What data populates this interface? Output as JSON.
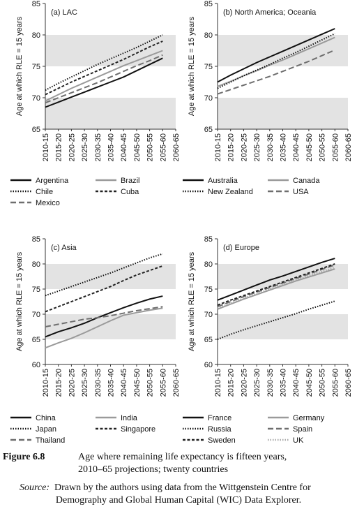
{
  "chart_data": [
    {
      "type": "line",
      "title": "(a) LAC",
      "ylabel": "Age at which RLE = 15 years",
      "categories": [
        "2010-15",
        "2015-20",
        "2020-25",
        "2025-30",
        "2030-35",
        "2035-40",
        "2040-45",
        "2045-50",
        "2050-55",
        "2055-60",
        "2060-65"
      ],
      "ylim": [
        65,
        85
      ],
      "yticks": [
        65,
        70,
        75,
        80,
        85
      ],
      "shaded_bands": [
        [
          65,
          70
        ],
        [
          75,
          80
        ]
      ],
      "series": [
        {
          "name": "Argentina",
          "color": "#111111",
          "dash": "solid",
          "values": [
            68.5,
            69.3,
            70.1,
            70.9,
            71.7,
            72.5,
            73.3,
            74.3,
            75.3,
            76.3,
            null
          ]
        },
        {
          "name": "Brazil",
          "color": "#9a9a9a",
          "dash": "solid",
          "values": [
            69.5,
            70.5,
            71.5,
            72.4,
            73.3,
            74.2,
            75.1,
            75.9,
            76.7,
            77.5,
            null
          ]
        },
        {
          "name": "Chile",
          "color": "#111111",
          "dash": "dotted",
          "values": [
            71.2,
            72.3,
            73.3,
            74.3,
            75.3,
            76.2,
            77.1,
            78.0,
            79.0,
            80.0,
            null
          ]
        },
        {
          "name": "Cuba",
          "color": "#222222",
          "dash": "dashed",
          "values": [
            70.5,
            71.5,
            72.5,
            73.4,
            74.3,
            75.2,
            76.1,
            77.1,
            78.1,
            79.0,
            null
          ]
        },
        {
          "name": "Mexico",
          "color": "#6e6e6e",
          "dash": "longdash",
          "values": [
            69.2,
            70.0,
            70.8,
            71.6,
            72.4,
            73.3,
            74.2,
            75.1,
            75.9,
            76.8,
            null
          ]
        }
      ]
    },
    {
      "type": "line",
      "title": "(b) North America; Oceania",
      "ylabel": "Age at which RLE = 15 years",
      "categories": [
        "2010-15",
        "2015-20",
        "2020-25",
        "2025-30",
        "2030-35",
        "2035-40",
        "2040-45",
        "2045-50",
        "2050-55",
        "2055-60",
        "2060-65"
      ],
      "ylim": [
        65,
        85
      ],
      "yticks": [
        65,
        70,
        75,
        80,
        85
      ],
      "shaded_bands": [
        [
          65,
          70
        ],
        [
          75,
          80
        ]
      ],
      "series": [
        {
          "name": "Australia",
          "color": "#111111",
          "dash": "solid",
          "values": [
            72.5,
            73.6,
            74.6,
            75.6,
            76.5,
            77.4,
            78.3,
            79.2,
            80.1,
            81.0,
            null
          ]
        },
        {
          "name": "Canada",
          "color": "#9a9a9a",
          "dash": "solid",
          "values": [
            71.8,
            72.6,
            73.5,
            74.3,
            75.2,
            76.0,
            76.9,
            77.8,
            78.7,
            79.6,
            null
          ]
        },
        {
          "name": "New Zealand",
          "color": "#111111",
          "dash": "dotted",
          "values": [
            71.5,
            72.5,
            73.5,
            74.4,
            75.3,
            76.3,
            77.2,
            78.2,
            79.2,
            80.2,
            null
          ]
        },
        {
          "name": "USA",
          "color": "#6e6e6e",
          "dash": "longdash",
          "values": [
            70.6,
            71.3,
            72.0,
            72.7,
            73.4,
            74.2,
            75.0,
            75.8,
            76.7,
            77.6,
            null
          ]
        }
      ]
    },
    {
      "type": "line",
      "title": "(c) Asia",
      "ylabel": "Age at which RLE = 15 years",
      "categories": [
        "2010-15",
        "2015-20",
        "2020-25",
        "2025-30",
        "2030-35",
        "2035-40",
        "2040-45",
        "2045-50",
        "2050-55",
        "2055-60",
        "2060-65"
      ],
      "ylim": [
        60,
        85
      ],
      "yticks": [
        60,
        65,
        70,
        75,
        80,
        85
      ],
      "shaded_bands": [
        [
          65,
          70
        ],
        [
          75,
          80
        ]
      ],
      "series": [
        {
          "name": "China",
          "color": "#111111",
          "dash": "solid",
          "values": [
            65.5,
            66.5,
            67.3,
            68.2,
            69.3,
            70.3,
            71.3,
            72.2,
            73.0,
            73.6,
            null
          ]
        },
        {
          "name": "India",
          "color": "#9a9a9a",
          "dash": "solid",
          "values": [
            63.3,
            64.3,
            65.2,
            66.3,
            67.5,
            68.7,
            69.8,
            70.3,
            70.8,
            71.2,
            null
          ]
        },
        {
          "name": "Japan",
          "color": "#111111",
          "dash": "dotted",
          "values": [
            73.7,
            74.6,
            75.5,
            76.4,
            77.3,
            78.2,
            79.2,
            80.2,
            81.2,
            82.0,
            null
          ]
        },
        {
          "name": "Singapore",
          "color": "#222222",
          "dash": "dashed",
          "values": [
            70.5,
            71.5,
            72.5,
            73.5,
            74.5,
            75.5,
            76.7,
            77.8,
            78.7,
            79.6,
            null
          ]
        },
        {
          "name": "Thailand",
          "color": "#6e6e6e",
          "dash": "longdash",
          "values": [
            67.5,
            68.0,
            68.5,
            69.0,
            69.3,
            69.7,
            70.2,
            70.7,
            71.1,
            71.5,
            null
          ]
        }
      ]
    },
    {
      "type": "line",
      "title": "(d) Europe",
      "ylabel": "Age at which RLE = 15 years",
      "categories": [
        "2010-15",
        "2015-20",
        "2020-25",
        "2025-30",
        "2030-35",
        "2035-40",
        "2040-45",
        "2045-50",
        "2050-55",
        "2055-60",
        "2060-65"
      ],
      "ylim": [
        60,
        85
      ],
      "yticks": [
        60,
        65,
        70,
        75,
        80,
        85
      ],
      "shaded_bands": [
        [
          65,
          70
        ],
        [
          75,
          80
        ]
      ],
      "series": [
        {
          "name": "France",
          "color": "#111111",
          "dash": "solid",
          "values": [
            72.8,
            73.8,
            74.8,
            75.8,
            76.8,
            77.6,
            78.5,
            79.4,
            80.3,
            81.1,
            null
          ]
        },
        {
          "name": "Germany",
          "color": "#9a9a9a",
          "dash": "solid",
          "values": [
            71.0,
            72.0,
            73.0,
            73.9,
            74.8,
            75.7,
            76.6,
            77.4,
            78.2,
            79.0,
            null
          ]
        },
        {
          "name": "Russia",
          "color": "#111111",
          "dash": "dotted",
          "values": [
            65.0,
            66.0,
            66.9,
            67.7,
            68.5,
            69.3,
            70.1,
            71.0,
            71.8,
            72.6,
            null
          ]
        },
        {
          "name": "Spain",
          "color": "#6e6e6e",
          "dash": "longdash",
          "values": [
            71.5,
            72.5,
            73.5,
            74.4,
            75.3,
            76.2,
            77.1,
            78.0,
            78.9,
            79.8,
            null
          ]
        },
        {
          "name": "Sweden",
          "color": "#222222",
          "dash": "dashed",
          "values": [
            71.8,
            72.8,
            73.7,
            74.6,
            75.5,
            76.4,
            77.3,
            78.2,
            79.1,
            80.0,
            null
          ]
        },
        {
          "name": "UK",
          "color": "#aaaaaa",
          "dash": "dotted",
          "values": [
            71.2,
            72.2,
            73.2,
            74.1,
            75.0,
            75.9,
            76.8,
            77.7,
            78.5,
            79.3,
            null
          ]
        }
      ]
    }
  ],
  "caption": {
    "label": "Figure 6.8",
    "text": [
      "Age where remaining life expectancy is fifteen years,",
      "2010–65 projections; twenty countries"
    ],
    "source_label": "Source:",
    "source_text": [
      "Drawn by the authors using data from the Wittgenstein Centre for",
      "Demography and Global Human Capital (WIC) Data Explorer."
    ]
  }
}
